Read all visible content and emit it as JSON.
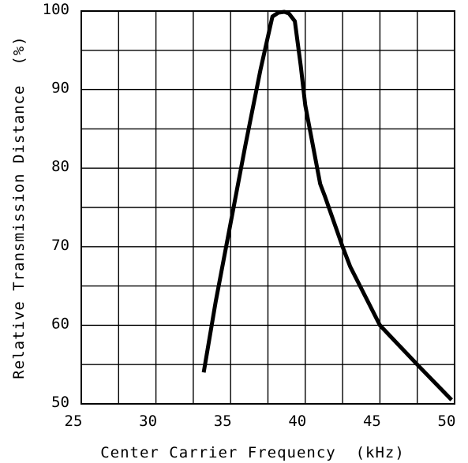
{
  "chart_data": {
    "type": "line",
    "title": "",
    "xlabel": "Center Carrier Frequency  (kHz)",
    "ylabel": "Relative Transmission Distance  (%)",
    "xlim": [
      25,
      50
    ],
    "ylim": [
      50,
      100
    ],
    "x_ticks": [
      25,
      30,
      35,
      40,
      45,
      50
    ],
    "x_tick_labels": [
      "25",
      "30",
      "35",
      "40",
      "45",
      "50"
    ],
    "y_ticks": [
      50,
      60,
      70,
      80,
      90,
      100
    ],
    "y_tick_labels": [
      "50",
      "60",
      "70",
      "80",
      "90",
      "100"
    ],
    "grid": true,
    "line_color": "#000000",
    "series": [
      {
        "x": [
          33.2,
          34.0,
          35.0,
          36.0,
          37.0,
          37.8,
          38.2,
          38.6,
          38.9,
          39.3,
          39.7,
          40.0,
          41.0,
          41.3,
          42.5,
          43.0,
          45.0,
          47.5,
          49.8
        ],
        "y": [
          54,
          63,
          73,
          83,
          92.5,
          99.3,
          99.8,
          99.9,
          99.7,
          98.7,
          93,
          88,
          78,
          76.5,
          70,
          67.5,
          60,
          55,
          50.5
        ]
      }
    ]
  }
}
